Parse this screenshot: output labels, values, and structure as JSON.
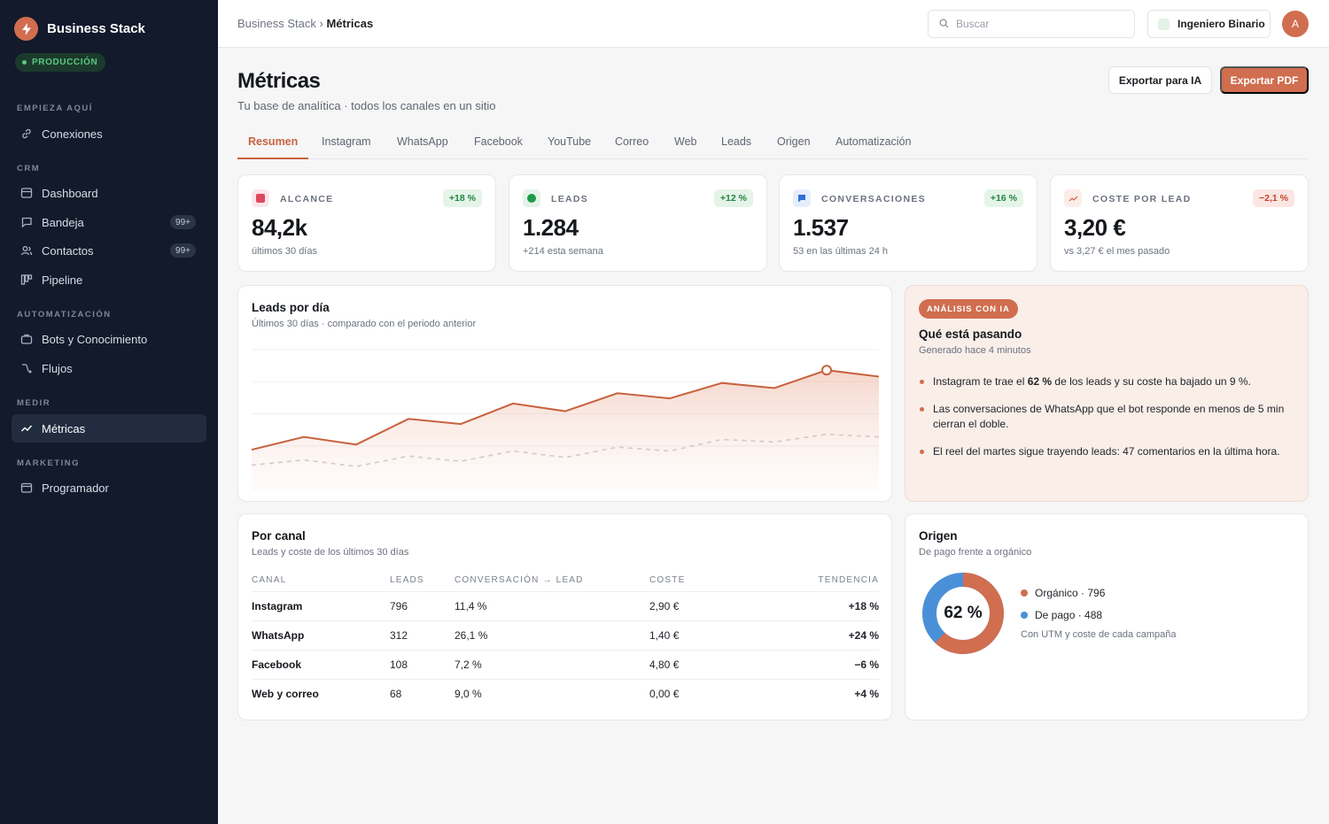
{
  "brand": {
    "name": "Business Stack",
    "env": "PRODUCCIÓN"
  },
  "sidebar": {
    "sections": [
      {
        "title": "EMPIEZA AQUÍ",
        "items": [
          {
            "label": "Conexiones",
            "icon": "link-icon"
          }
        ]
      },
      {
        "title": "CRM",
        "items": [
          {
            "label": "Dashboard",
            "icon": "dashboard-icon"
          },
          {
            "label": "Bandeja",
            "icon": "inbox-icon",
            "badge": "99+"
          },
          {
            "label": "Contactos",
            "icon": "contacts-icon",
            "badge": "99+"
          },
          {
            "label": "Pipeline",
            "icon": "pipeline-icon"
          }
        ]
      },
      {
        "title": "AUTOMATIZACIÓN",
        "items": [
          {
            "label": "Bots y Conocimiento",
            "icon": "bot-icon"
          },
          {
            "label": "Flujos",
            "icon": "flow-icon"
          }
        ]
      },
      {
        "title": "MEDIR",
        "items": [
          {
            "label": "Métricas",
            "icon": "chart-icon",
            "active": true
          }
        ]
      },
      {
        "title": "MARKETING",
        "items": [
          {
            "label": "Programador",
            "icon": "calendar-icon"
          }
        ]
      }
    ]
  },
  "topbar": {
    "breadcrumb_root": "Business Stack",
    "breadcrumb_sep": " › ",
    "breadcrumb_current": "Métricas",
    "search_placeholder": "Buscar",
    "workspace": "Ingeniero Binario",
    "avatar_initial": "A"
  },
  "header": {
    "title": "Métricas",
    "subtitle": "Tu base de analítica · todos los canales en un sitio",
    "export_ai": "Exportar para IA",
    "export_pdf": "Exportar PDF"
  },
  "tabs": [
    "Resumen",
    "Instagram",
    "WhatsApp",
    "Facebook",
    "YouTube",
    "Correo",
    "Web",
    "Leads",
    "Origen",
    "Automatización"
  ],
  "kpis": [
    {
      "label": "ALCANCE",
      "value": "84,2k",
      "sub": "últimos 30 días",
      "delta": "+18 %",
      "trend": "up",
      "icon": "reach-icon",
      "color": "#e0485e",
      "bg": "#fbe6e9"
    },
    {
      "label": "LEADS",
      "value": "1.284",
      "sub": "+214 esta semana",
      "delta": "+12 %",
      "trend": "up",
      "icon": "leads-icon",
      "color": "#1f9a4b",
      "bg": "#e3f3e8"
    },
    {
      "label": "CONVERSACIONES",
      "value": "1.537",
      "sub": "53 en las últimas 24 h",
      "delta": "+16 %",
      "trend": "up",
      "icon": "chat-icon",
      "color": "#2f6fd6",
      "bg": "#e5eefb"
    },
    {
      "label": "COSTE POR LEAD",
      "value": "3,20 €",
      "sub": "vs 3,27 € el mes pasado",
      "delta": "−2,1 %",
      "trend": "down",
      "icon": "trend-icon",
      "color": "#d06e4f",
      "bg": "#fbeee8"
    }
  ],
  "leads_chart": {
    "title": "Leads por día",
    "subtitle": "Últimos 30 días · comparado con el periodo anterior"
  },
  "chart_data": {
    "type": "area",
    "title": "Leads por día",
    "x": [
      1,
      2,
      3,
      4,
      5,
      6,
      7,
      8,
      9,
      10,
      11,
      12,
      13
    ],
    "ylim": [
      0,
      100
    ],
    "grid": true,
    "series": [
      {
        "values": [
          22,
          32,
          26,
          46,
          42,
          58,
          52,
          66,
          62,
          74,
          70,
          84,
          79
        ],
        "color": "#c8623f",
        "style": "solid",
        "fill": true,
        "highlight_index": 11
      },
      {
        "values": [
          10,
          14,
          9,
          17,
          13,
          21,
          16,
          24,
          21,
          30,
          28,
          34,
          32
        ],
        "color": "#cfc9c7",
        "style": "dashed"
      }
    ]
  },
  "ai": {
    "badge": "ANÁLISIS CON IA",
    "title": "Qué está pasando",
    "subtitle": "Generado hace 4 minutos",
    "bullet1_pre": "Instagram te trae el ",
    "bullet1_bold": "62 %",
    "bullet1_post": " de los leads y su coste ha bajado un 9 %.",
    "bullet2": "Las conversaciones de WhatsApp que el bot responde en menos de 5 min cierran el doble.",
    "bullet3": "El reel del martes sigue trayendo leads: 47 comentarios en la última hora."
  },
  "channels": {
    "title": "Por canal",
    "subtitle": "Leads y coste de los últimos 30 días",
    "headers": [
      "CANAL",
      "LEADS",
      "CONVERSACIÓN → LEAD",
      "COSTE",
      "TENDENCIA"
    ],
    "rows": [
      {
        "channel": "Instagram",
        "leads": "796",
        "conversion": "11,4 %",
        "cost": "2,90 €",
        "trend": "+18 %",
        "dir": "up"
      },
      {
        "channel": "WhatsApp",
        "leads": "312",
        "conversion": "26,1 %",
        "cost": "1,40 €",
        "trend": "+24 %",
        "dir": "up"
      },
      {
        "channel": "Facebook",
        "leads": "108",
        "conversion": "7,2 %",
        "cost": "4,80 €",
        "trend": "−6 %",
        "dir": "down"
      },
      {
        "channel": "Web y correo",
        "leads": "68",
        "conversion": "9,0 %",
        "cost": "0,00 €",
        "trend": "+4 %",
        "dir": "up"
      }
    ]
  },
  "origin": {
    "title": "Origen",
    "subtitle": "De pago frente a orgánico",
    "percent_label": "62 %",
    "organic_share": 62,
    "legend": [
      {
        "label": "Orgánico · 796",
        "color": "#d06e4f"
      },
      {
        "label": "De pago · 488",
        "color": "#4a90d9"
      }
    ],
    "note": "Con UTM y coste de cada campaña"
  }
}
